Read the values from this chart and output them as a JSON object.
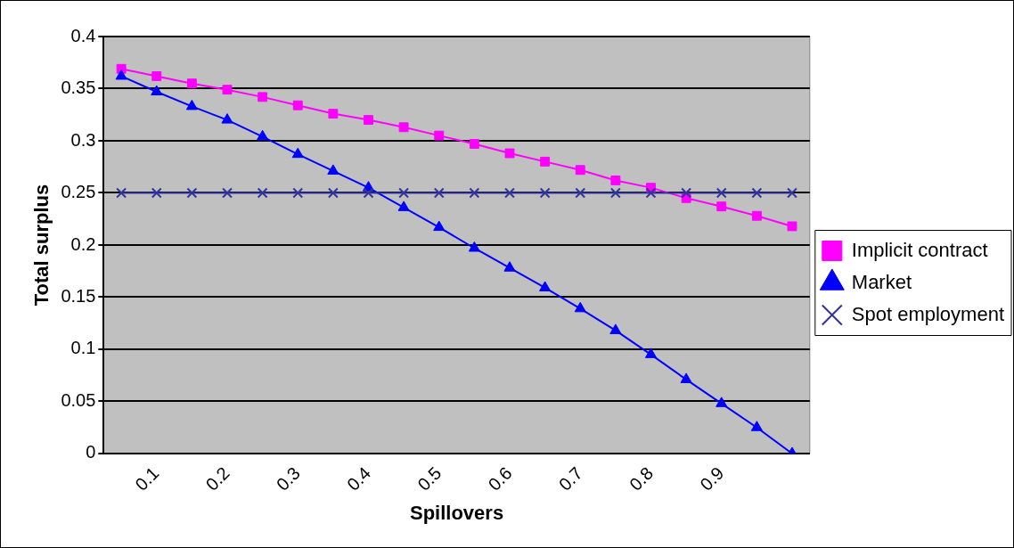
{
  "chart_data": {
    "type": "line",
    "xlabel": "Spillovers",
    "ylabel": "Total surplus",
    "categories": [
      null,
      "0.1",
      null,
      "0.2",
      null,
      "0.3",
      null,
      "0.4",
      null,
      "0.5",
      null,
      "0.6",
      null,
      "0.7",
      null,
      "0.8",
      null,
      "0.9",
      null,
      null
    ],
    "series": [
      {
        "name": "Implicit contract",
        "color": "#ff00ff",
        "marker": "square",
        "values": [
          0.369,
          0.362,
          0.355,
          0.349,
          0.342,
          0.334,
          0.326,
          0.32,
          0.313,
          0.305,
          0.297,
          0.288,
          0.28,
          0.272,
          0.262,
          0.255,
          0.245,
          0.237,
          0.228,
          0.218
        ]
      },
      {
        "name": "Market",
        "color": "#0000ff",
        "marker": "triangle",
        "values": [
          0.362,
          0.347,
          0.333,
          0.32,
          0.304,
          0.287,
          0.271,
          0.255,
          0.236,
          0.217,
          0.197,
          0.178,
          0.159,
          0.139,
          0.118,
          0.095,
          0.071,
          0.048,
          0.025,
          0
        ]
      },
      {
        "name": "Spot employment",
        "color": "#333399",
        "marker": "cross",
        "values": [
          0.25,
          0.25,
          0.25,
          0.25,
          0.25,
          0.25,
          0.25,
          0.25,
          0.25,
          0.25,
          0.25,
          0.25,
          0.25,
          0.25,
          0.25,
          0.25,
          0.25,
          0.25,
          0.25,
          0.25
        ]
      }
    ],
    "ylim": [
      0,
      0.4
    ],
    "yticks": [
      0,
      0.05,
      0.1,
      0.15,
      0.2,
      0.25,
      0.3,
      0.35,
      0.4
    ],
    "grid": "y",
    "legend": "right",
    "line_style": "solid"
  }
}
